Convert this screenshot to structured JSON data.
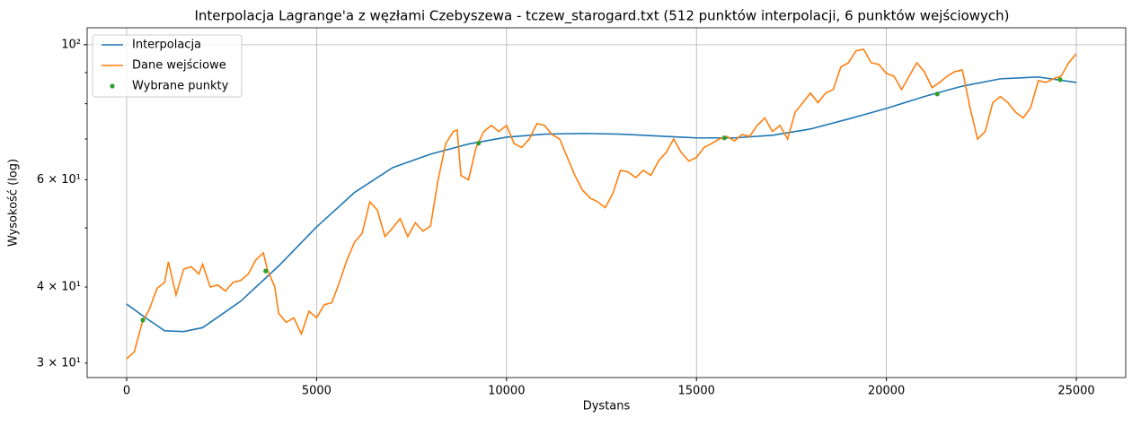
{
  "chart_data": {
    "type": "line",
    "title": "Interpolacja Lagrange'a z węzłami Czebyszewa - tczew_starogard.txt (512 punktów interpolacji, 6 punktów wejściowych)",
    "xlabel": "Dystans",
    "ylabel": "Wysokość (log)",
    "yscale": "log",
    "grid": true,
    "legend": "upper left",
    "xlim": [
      -1040,
      26300
    ],
    "xticks": [
      0,
      5000,
      10000,
      15000,
      20000,
      25000
    ],
    "ylim": [
      28.4,
      106.6
    ],
    "yticks": [
      {
        "value": 100,
        "label": "10²"
      },
      {
        "value": 60,
        "label": "6 × 10¹"
      },
      {
        "value": 40,
        "label": "4 × 10¹"
      },
      {
        "value": 30,
        "label": "3 × 10¹"
      }
    ],
    "yminorticks": [
      50,
      70,
      80,
      90
    ],
    "series": [
      {
        "name": "Interpolacja",
        "color": "#1f77b4",
        "style": "line",
        "x": [
          0,
          500,
          1000,
          1500,
          2000,
          3000,
          4000,
          5000,
          6000,
          7000,
          8000,
          9000,
          10000,
          11000,
          12000,
          13000,
          14000,
          15000,
          16000,
          17000,
          18000,
          19000,
          20000,
          21000,
          22000,
          23000,
          24000,
          25000
        ],
        "values": [
          37.5,
          35.6,
          33.9,
          33.8,
          34.3,
          37.9,
          43.3,
          50.2,
          57.2,
          62.8,
          66.1,
          68.7,
          70.5,
          71.3,
          71.5,
          71.3,
          70.8,
          70.3,
          70.3,
          71.0,
          72.7,
          75.5,
          78.6,
          82.2,
          85.5,
          87.9,
          88.5,
          86.7
        ]
      },
      {
        "name": "Dane wejściowe",
        "color": "#ff7f0e",
        "style": "line",
        "x": [
          0,
          200,
          400,
          600,
          800,
          1000,
          1100,
          1300,
          1500,
          1700,
          1900,
          2000,
          2200,
          2400,
          2600,
          2800,
          3000,
          3200,
          3400,
          3600,
          3700,
          3900,
          4000,
          4200,
          4400,
          4600,
          4800,
          5000,
          5200,
          5400,
          5600,
          5800,
          6000,
          6200,
          6400,
          6600,
          6800,
          7000,
          7200,
          7400,
          7600,
          7800,
          8000,
          8200,
          8400,
          8600,
          8700,
          8800,
          9000,
          9200,
          9400,
          9600,
          9800,
          10000,
          10200,
          10400,
          10600,
          10800,
          11000,
          11200,
          11400,
          11600,
          11800,
          12000,
          12200,
          12400,
          12600,
          12800,
          13000,
          13200,
          13400,
          13600,
          13800,
          14000,
          14200,
          14400,
          14600,
          14800,
          15000,
          15200,
          15400,
          15600,
          15800,
          16000,
          16200,
          16400,
          16600,
          16800,
          17000,
          17200,
          17400,
          17600,
          17800,
          18000,
          18200,
          18400,
          18600,
          18800,
          19000,
          19200,
          19400,
          19600,
          19800,
          20000,
          20200,
          20400,
          20600,
          20800,
          21000,
          21200,
          21400,
          21600,
          21800,
          22000,
          22200,
          22400,
          22600,
          22800,
          23000,
          23200,
          23400,
          23600,
          23800,
          24000,
          24200,
          24400,
          24600,
          24800,
          25000
        ],
        "values": [
          30.5,
          31.3,
          34.8,
          36.8,
          39.8,
          40.7,
          44.0,
          38.8,
          42.8,
          43.2,
          42.0,
          43.6,
          40.0,
          40.3,
          39.4,
          40.7,
          41.0,
          42.0,
          44.3,
          45.5,
          42.8,
          40.0,
          36.2,
          35.0,
          35.6,
          33.5,
          36.5,
          35.6,
          37.4,
          37.7,
          40.7,
          44.3,
          47.4,
          49.0,
          55.2,
          53.5,
          48.4,
          50.0,
          51.8,
          48.4,
          51.0,
          49.4,
          50.4,
          60.0,
          68.8,
          72.0,
          72.5,
          61.0,
          60.0,
          67.8,
          72.0,
          73.7,
          72.0,
          73.7,
          68.8,
          67.8,
          70.0,
          74.2,
          73.7,
          71.2,
          70.0,
          65.3,
          61.0,
          57.7,
          56.0,
          55.2,
          54.0,
          57.0,
          62.2,
          61.8,
          60.5,
          62.2,
          61.0,
          64.4,
          66.5,
          70.0,
          66.5,
          64.4,
          65.3,
          67.8,
          68.8,
          70.0,
          70.7,
          69.5,
          71.2,
          70.7,
          73.7,
          75.8,
          72.0,
          73.7,
          70.0,
          77.5,
          80.3,
          83.3,
          80.3,
          83.3,
          84.4,
          91.9,
          93.4,
          97.7,
          98.3,
          93.4,
          92.8,
          89.7,
          88.8,
          84.4,
          88.8,
          93.4,
          90.3,
          85.0,
          86.7,
          88.8,
          90.3,
          90.9,
          78.9,
          70.0,
          72.0,
          80.3,
          82.2,
          80.3,
          77.5,
          75.8,
          78.9,
          87.3,
          86.7,
          87.9,
          88.8,
          93.4,
          96.6
        ]
      },
      {
        "name": "Wybrane punkty",
        "color": "#2ca02c",
        "style": "scatter",
        "x": [
          426,
          3661,
          9265,
          15735,
          21339,
          24574
        ],
        "values": [
          35.3,
          42.5,
          68.9,
          70.3,
          83.0,
          87.6
        ]
      }
    ]
  }
}
